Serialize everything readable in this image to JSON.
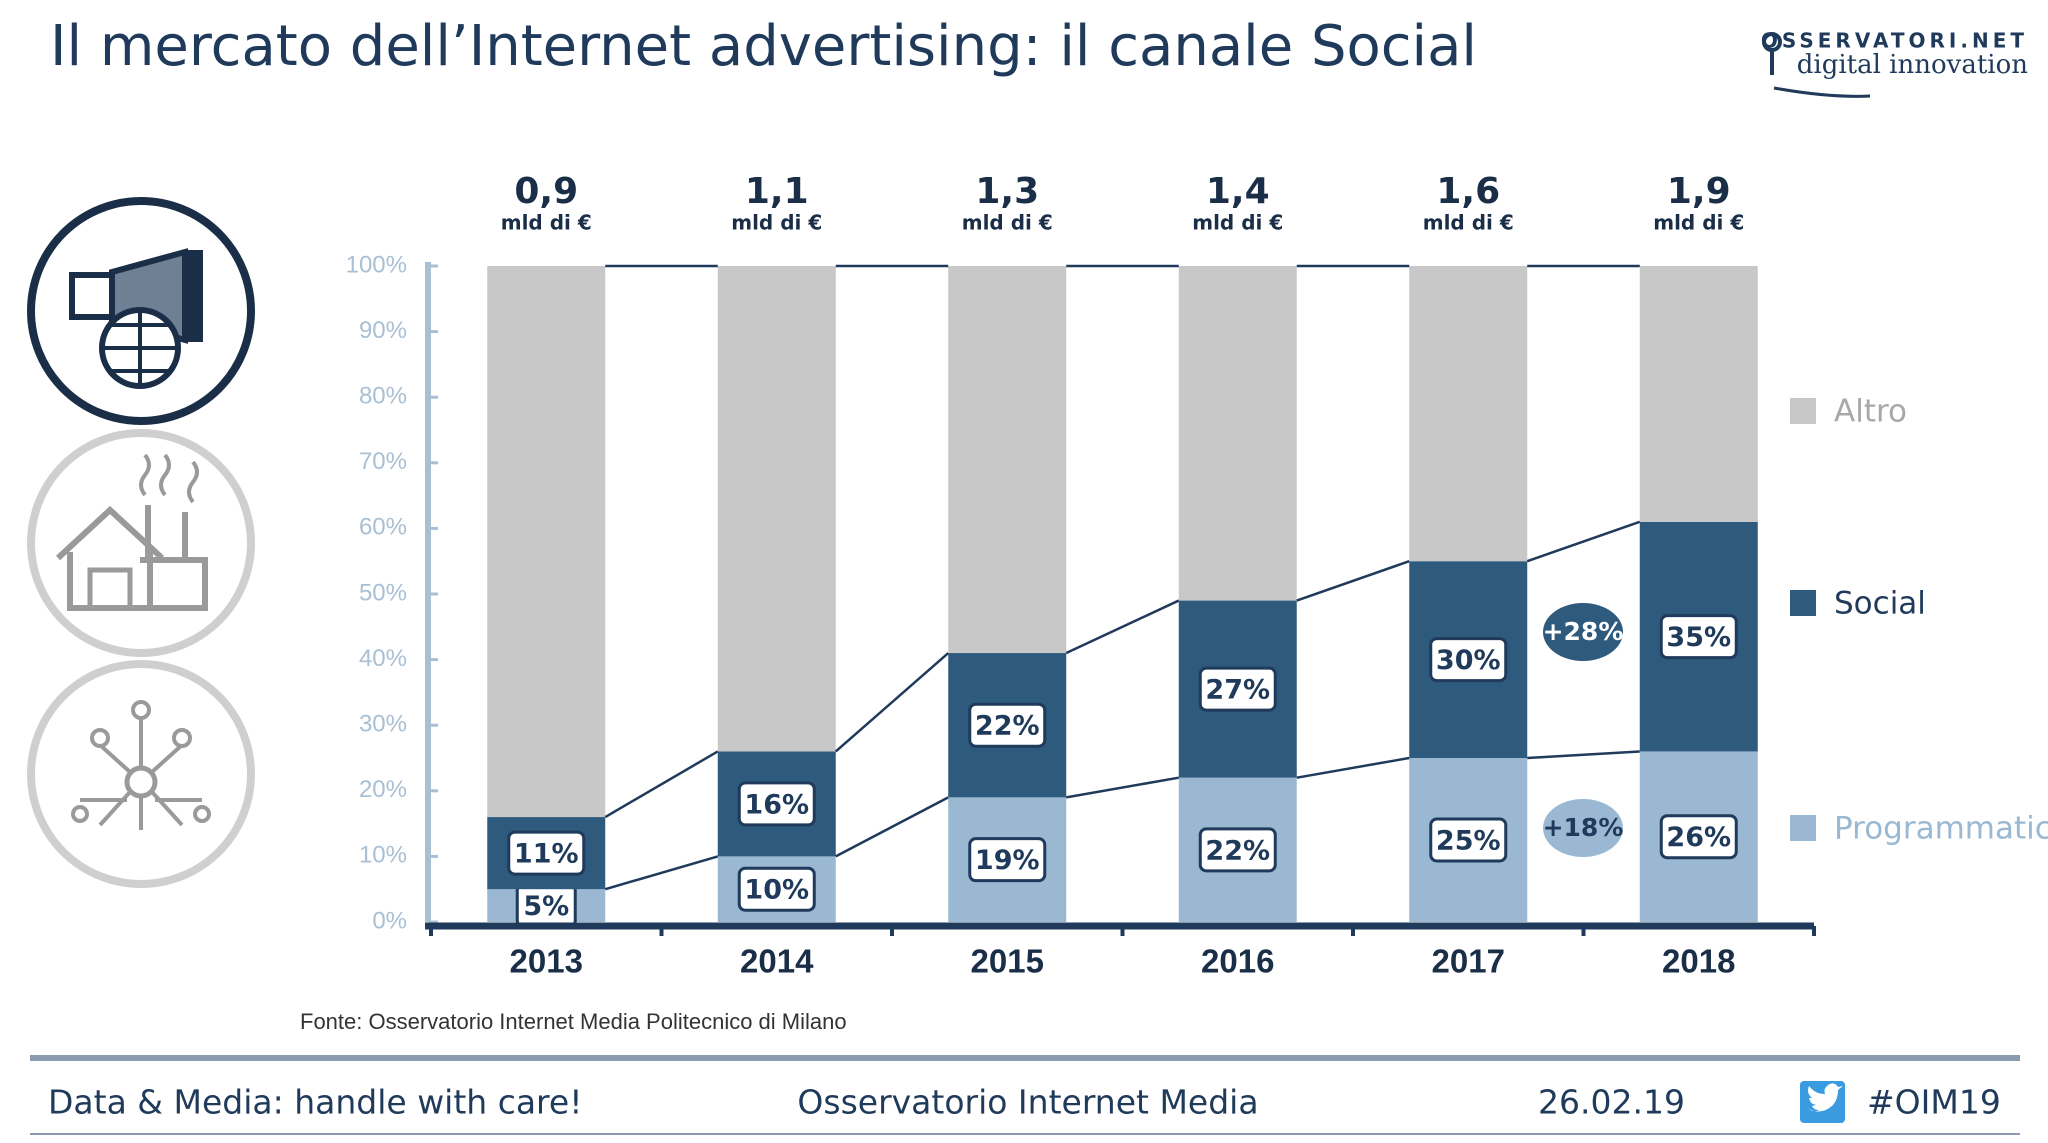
{
  "header": {
    "title": "Il mercato dell’Internet advertising: il canale Social",
    "logo": "OSSERVATORI.NET",
    "logo_tagline": "digital innovation"
  },
  "chart_data": {
    "type": "stacked-bar",
    "categories": [
      "2013",
      "2014",
      "2015",
      "2016",
      "2017",
      "2018"
    ],
    "series": [
      {
        "name": "Programmatic",
        "color": "#9ab8d2",
        "values": [
          5,
          10,
          19,
          22,
          25,
          26
        ],
        "value_labels": [
          "5%",
          "10%",
          "19%",
          "22%",
          "25%",
          "26%"
        ]
      },
      {
        "name": "Social",
        "color": "#2e5a7e",
        "values": [
          11,
          16,
          22,
          27,
          30,
          35
        ],
        "value_labels": [
          "11%",
          "16%",
          "22%",
          "27%",
          "30%",
          "35%"
        ]
      },
      {
        "name": "Altro",
        "color": "#c8c8c8",
        "values": [
          84,
          74,
          59,
          51,
          45,
          39
        ]
      }
    ],
    "totals": {
      "values": [
        0.9,
        1.1,
        1.3,
        1.4,
        1.6,
        1.9
      ],
      "value_labels": [
        "0,9",
        "1,1",
        "1,3",
        "1,4",
        "1,6",
        "1,9"
      ],
      "unit": "mld di €"
    },
    "annotations": [
      "+28%",
      "+18%"
    ],
    "ylim": [
      0,
      100
    ],
    "yticks": [
      {
        "value": 0,
        "label": "0%"
      },
      {
        "value": 10,
        "label": "10%"
      },
      {
        "value": 20,
        "label": "20%"
      },
      {
        "value": 30,
        "label": "30%"
      },
      {
        "value": 40,
        "label": "40%"
      },
      {
        "value": 50,
        "label": "50%"
      },
      {
        "value": 60,
        "label": "60%"
      },
      {
        "value": 70,
        "label": "70%"
      },
      {
        "value": 80,
        "label": "80%"
      },
      {
        "value": 90,
        "label": "90%"
      },
      {
        "value": 100,
        "label": "100%"
      }
    ],
    "legend": "right",
    "grid": false,
    "source": "Fonte: Osservatorio Internet Media Politecnico di Milano"
  },
  "footer": {
    "left": "Data & Media: handle with care!",
    "center": "Osservatorio Internet Media",
    "date": "26.02.19",
    "hashtag": "#OIM19"
  }
}
